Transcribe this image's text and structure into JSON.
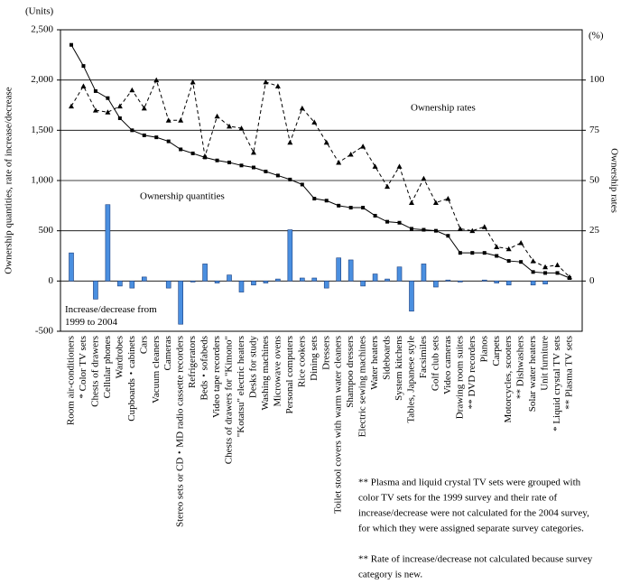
{
  "chart_data": {
    "type": "bar",
    "y_unit": "(Units)",
    "y2_unit": "(%)",
    "ylabel": "Ownership quantities, rate of increase/decrease",
    "y2label": "Ownership rates",
    "ylim": [
      -500,
      2500
    ],
    "yticks": [
      {
        "value": -500,
        "label": "-500"
      },
      0,
      500,
      {
        "value": 1000,
        "label": "1,000"
      },
      {
        "value": 1500,
        "label": "1,500"
      },
      {
        "value": 2000,
        "label": "2,000"
      },
      {
        "value": 2500,
        "label": "2,500"
      }
    ],
    "y2lim": [
      -25,
      125
    ],
    "y2ticks": [
      0,
      25,
      50,
      75,
      100
    ],
    "grid": true,
    "categories": [
      "Room air-conditioners",
      "* Color TV sets",
      "Chests of drawers",
      "Cellular phones",
      "Wardrobes",
      "Cupboards・cabinets",
      "Cars",
      "Vacuum cleaners",
      "Cameras",
      "Stereo sets or CD・MD radio cassette recorders",
      "Refrigerators",
      "Beds・sofabeds",
      "Video tape recorders",
      "Chests of drawers for \"Kimono\"",
      "\"Kotatsu\" electric heaters",
      "Desks for study",
      "Washing machines",
      "Microwave ovens",
      "Personal computers",
      "Rice cookers",
      "Dining sets",
      "Dressers",
      "Toilet stool covers with warm water cleaners",
      "Shampoo dressers",
      "Electric sewing machines",
      "Water heaters",
      "Sideboards",
      "System kitchens",
      "Tables, Japanese style",
      "Facsimiles",
      "Golf club sets",
      "Video cameras",
      "Drawing room suites",
      "** DVD recorders",
      "Pianos",
      "Carpets",
      "Motorcycles, scooters",
      "** Dishwashers",
      "Solar water heaters",
      "Unit furniture",
      "* Liquid crystal TV sets",
      "** Plasma TV sets"
    ],
    "series": [
      {
        "name": "Increase/decrease from 1999 to 2004",
        "type": "bar",
        "color": "#4a8fe0",
        "values": [
          280,
          null,
          -180,
          760,
          -50,
          -70,
          40,
          0,
          -70,
          -430,
          -10,
          170,
          -20,
          60,
          -110,
          -40,
          -20,
          20,
          510,
          30,
          30,
          -70,
          230,
          210,
          -50,
          70,
          20,
          140,
          -300,
          170,
          -60,
          10,
          -10,
          null,
          10,
          -20,
          -40,
          null,
          -40,
          -30,
          null,
          null
        ]
      },
      {
        "name": "Ownership quantities",
        "type": "line",
        "color": "#000000",
        "dashed": false,
        "values": [
          2350,
          2140,
          1890,
          1820,
          1620,
          1500,
          1450,
          1430,
          1390,
          1310,
          1270,
          1230,
          1200,
          1180,
          1150,
          1130,
          1090,
          1050,
          1010,
          960,
          820,
          800,
          750,
          730,
          730,
          650,
          590,
          580,
          520,
          510,
          500,
          450,
          280,
          280,
          280,
          250,
          200,
          190,
          90,
          80,
          80,
          30
        ]
      },
      {
        "name": "Ownership rates",
        "type": "line",
        "axis": "y2",
        "color": "#000000",
        "dashed": true,
        "values": [
          87,
          97,
          85,
          84,
          87,
          95,
          86,
          100,
          80,
          80,
          99,
          62,
          82,
          77,
          76,
          64,
          99,
          97,
          69,
          86,
          79,
          69,
          59,
          63,
          67,
          57,
          47,
          57,
          39,
          51,
          39,
          41,
          26,
          25,
          27,
          17,
          16,
          19,
          10,
          7,
          8,
          2
        ]
      }
    ],
    "footnotes": [
      [
        "** Plasma and liquid crystal TV sets were grouped with",
        "color TV sets for the 1999 survey and their rate of",
        "increase/decrease were not calculated for the 2004 survey,",
        "for which they were assigned separate survey categories."
      ],
      [
        "** Rate of increase/decrease not calculated because survey",
        "category is new."
      ]
    ]
  }
}
